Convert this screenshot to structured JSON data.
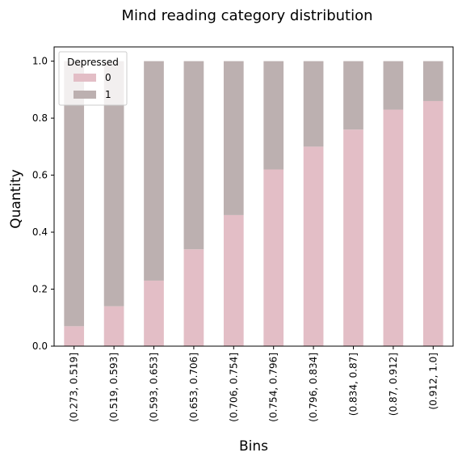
{
  "chart_data": {
    "type": "bar",
    "stacked": true,
    "title": "Mind reading category distribution",
    "xlabel": "Bins",
    "ylabel": "Quantity",
    "ylim": [
      0,
      1.05
    ],
    "yticks": [
      "0.0",
      "0.2",
      "0.4",
      "0.6",
      "0.8",
      "1.0"
    ],
    "categories": [
      "(0.273, 0.519]",
      "(0.519, 0.593]",
      "(0.593, 0.653]",
      "(0.653, 0.706]",
      "(0.706, 0.754]",
      "(0.754, 0.796]",
      "(0.796, 0.834]",
      "(0.834, 0.87]",
      "(0.87, 0.912]",
      "(0.912, 1.0]"
    ],
    "legend": {
      "title": "Depressed",
      "placement": "top-left"
    },
    "series": [
      {
        "name": "0",
        "color": "#e3bec6",
        "values": [
          0.07,
          0.14,
          0.23,
          0.34,
          0.46,
          0.62,
          0.7,
          0.76,
          0.83,
          0.86
        ]
      },
      {
        "name": "1",
        "color": "#bcb0b0",
        "values": [
          0.93,
          0.86,
          0.77,
          0.66,
          0.54,
          0.38,
          0.3,
          0.24,
          0.17,
          0.14
        ]
      }
    ],
    "grid": false
  }
}
